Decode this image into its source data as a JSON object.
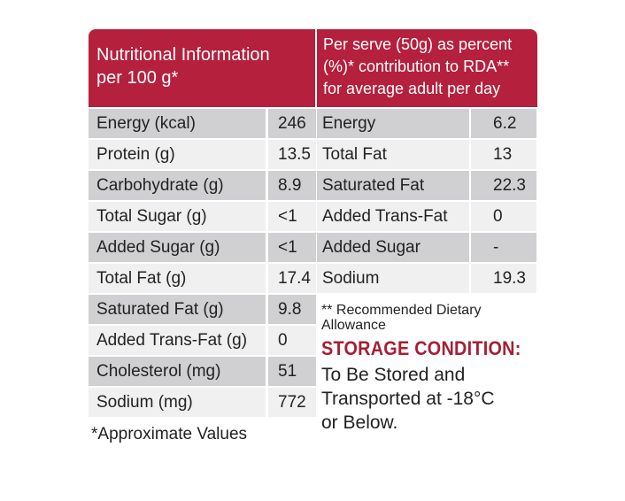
{
  "header": {
    "left_line1": "Nutritional Information",
    "left_line2": "per 100 g*",
    "right_line1": "Per serve (50g) as percent",
    "right_line2": "(%)* contribution to RDA**",
    "right_line3": "for average adult per day"
  },
  "per100g": [
    {
      "name": "Energy (kcal)",
      "value": "246"
    },
    {
      "name": "Protein (g)",
      "value": "13.5"
    },
    {
      "name": "Carbohydrate (g)",
      "value": "8.9"
    },
    {
      "name": "Total Sugar (g)",
      "value": "<1"
    },
    {
      "name": "Added Sugar (g)",
      "value": "<1"
    },
    {
      "name": "Total Fat (g)",
      "value": "17.4"
    },
    {
      "name": "Saturated Fat (g)",
      "value": "9.8"
    },
    {
      "name": "Added Trans-Fat (g)",
      "value": "0"
    },
    {
      "name": "Cholesterol (mg)",
      "value": "51"
    },
    {
      "name": "Sodium (mg)",
      "value": "772"
    }
  ],
  "rda": [
    {
      "name": "Energy",
      "value": "6.2"
    },
    {
      "name": "Total Fat",
      "value": "13"
    },
    {
      "name": "Saturated Fat",
      "value": "22.3"
    },
    {
      "name": "Added Trans-Fat",
      "value": "0"
    },
    {
      "name": "Added Sugar",
      "value": "-"
    },
    {
      "name": "Sodium",
      "value": "19.3"
    }
  ],
  "notes": {
    "approximate": "*Approximate Values",
    "rda_line1": "** Recommended Dietary",
    "rda_line2": "Allowance",
    "storage_title": "STORAGE CONDITION:",
    "storage_line1": "To Be Stored and",
    "storage_line2": "Transported at -18°C",
    "storage_line3": "or Below."
  }
}
